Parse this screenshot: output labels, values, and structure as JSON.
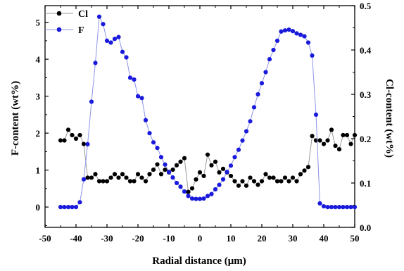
{
  "chart_data": {
    "type": "line",
    "xlabel": "Radial distance (μm)",
    "ylabel_left": "F-content (wt%)",
    "ylabel_right": "Cl-content (wt%)",
    "xlim": [
      -50,
      50
    ],
    "ylim_left": [
      -0.55,
      5.45
    ],
    "ylim_right": [
      0.0,
      0.5
    ],
    "x_ticks": [
      -50,
      -40,
      -30,
      -20,
      -10,
      0,
      10,
      20,
      30,
      40,
      50
    ],
    "y_left_ticks": [
      0,
      1,
      2,
      3,
      4,
      5
    ],
    "y_right_ticks": [
      "0.0",
      "0.1",
      "0.2",
      "0.3",
      "0.4",
      "0.5"
    ],
    "legend_position": "top-left",
    "grid": false,
    "colors": {
      "Cl": "#000000",
      "F": "#1a1adc",
      "F_line": "#8c94e6",
      "Cl_line": "#9a9a9a"
    },
    "series": [
      {
        "name": "Cl",
        "axis": "right",
        "marker": "circle",
        "x": [
          -45,
          -43.75,
          -42.5,
          -41.25,
          -40,
          -38.75,
          -37.5,
          -36.25,
          -35,
          -33.75,
          -32.5,
          -31.25,
          -30,
          -28.75,
          -27.5,
          -26.25,
          -25,
          -23.75,
          -22.5,
          -21.25,
          -20,
          -18.75,
          -17.5,
          -16.25,
          -15,
          -13.75,
          -12.5,
          -11.25,
          -10,
          -8.75,
          -7.5,
          -6.25,
          -5,
          -3.75,
          -2.5,
          -1.25,
          0,
          1.25,
          2.5,
          3.75,
          5,
          6.25,
          7.5,
          8.75,
          10,
          11.25,
          12.5,
          13.75,
          15,
          16.25,
          17.5,
          18.75,
          20,
          21.25,
          22.5,
          23.75,
          25,
          26.25,
          27.5,
          28.75,
          30,
          31.25,
          32.5,
          33.75,
          35,
          36.25,
          37.5,
          38.75,
          40,
          41.25,
          42.5,
          43.75,
          45,
          46.25,
          47.5,
          48.75,
          50
        ],
        "values": [
          0.196,
          0.196,
          0.22,
          0.208,
          0.2,
          0.208,
          0.188,
          0.112,
          0.112,
          0.12,
          0.104,
          0.104,
          0.104,
          0.112,
          0.12,
          0.112,
          0.12,
          0.112,
          0.104,
          0.104,
          0.12,
          0.112,
          0.104,
          0.12,
          0.13,
          0.142,
          0.12,
          0.13,
          0.124,
          0.13,
          0.14,
          0.148,
          0.156,
          0.08,
          0.088,
          0.108,
          0.124,
          0.116,
          0.164,
          0.14,
          0.148,
          0.124,
          0.132,
          0.124,
          0.116,
          0.104,
          0.094,
          0.104,
          0.094,
          0.112,
          0.104,
          0.096,
          0.104,
          0.12,
          0.112,
          0.112,
          0.104,
          0.104,
          0.112,
          0.104,
          0.112,
          0.104,
          0.12,
          0.128,
          0.136,
          0.206,
          0.196,
          0.196,
          0.188,
          0.196,
          0.22,
          0.184,
          0.176,
          0.208,
          0.208,
          0.188,
          0.208
        ]
      },
      {
        "name": "F",
        "axis": "left",
        "marker": "circle",
        "x": [
          -45,
          -43.75,
          -42.5,
          -41.25,
          -40,
          -38.75,
          -37.5,
          -36.25,
          -35,
          -33.75,
          -32.5,
          -31.25,
          -30,
          -28.75,
          -27.5,
          -26.25,
          -25,
          -23.75,
          -22.5,
          -21.25,
          -20,
          -18.75,
          -17.5,
          -16.25,
          -15,
          -13.75,
          -12.5,
          -11.25,
          -10,
          -8.75,
          -7.5,
          -6.25,
          -5,
          -3.75,
          -2.5,
          -1.25,
          0,
          1.25,
          2.5,
          3.75,
          5,
          6.25,
          7.5,
          8.75,
          10,
          11.25,
          12.5,
          13.75,
          15,
          16.25,
          17.5,
          18.75,
          20,
          21.25,
          22.5,
          23.75,
          25,
          26.25,
          27.5,
          28.75,
          30,
          31.25,
          32.5,
          33.75,
          35,
          36.25,
          37.5,
          38.75,
          40,
          41.25,
          42.5,
          43.75,
          45,
          46.25,
          47.5,
          48.75,
          50
        ],
        "values": [
          0.0,
          0.0,
          0.0,
          0.0,
          0.0,
          0.13,
          0.75,
          1.7,
          2.85,
          3.9,
          5.15,
          4.95,
          4.5,
          4.45,
          4.55,
          4.6,
          4.2,
          4.05,
          3.5,
          3.45,
          3.0,
          2.95,
          2.35,
          2.0,
          1.75,
          1.6,
          1.35,
          1.15,
          0.95,
          0.8,
          0.65,
          0.55,
          0.42,
          0.3,
          0.23,
          0.22,
          0.22,
          0.23,
          0.3,
          0.35,
          0.48,
          0.6,
          0.75,
          0.95,
          1.12,
          1.35,
          1.55,
          1.8,
          2.05,
          2.32,
          2.7,
          3.05,
          3.35,
          3.65,
          4.0,
          4.25,
          4.5,
          4.75,
          4.78,
          4.8,
          4.76,
          4.7,
          4.66,
          4.62,
          4.45,
          4.1,
          2.5,
          0.1,
          0.02,
          0.0,
          0.0,
          0.0,
          0.0,
          0.0,
          0.0,
          0.0,
          0.0
        ]
      }
    ]
  }
}
